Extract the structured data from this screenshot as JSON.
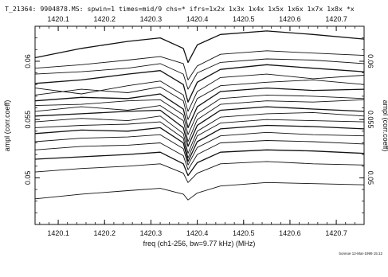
{
  "chart_data": {
    "type": "line",
    "header": "T_21364:  9904878.MS:   spwin=1   times=mid/9   chs=*   ifrs=1x2x 1x3x 1x4x 1x5x 1x6x 1x7x 1x8x *x",
    "xlabel": "freq (ch1-256, bw=9.77 kHz) (MHz)",
    "ylabel": "ampl (corr.coeff)",
    "xlim": [
      1420.05,
      1420.76
    ],
    "ylim": [
      0.046,
      0.063
    ],
    "x_ticks": [
      1420.1,
      1420.2,
      1420.3,
      1420.4,
      1420.5,
      1420.6,
      1420.7
    ],
    "x_tick_labels": [
      "1420.1",
      "1420.2",
      "1420.3",
      "1420.4",
      "1420.5",
      "1420.6",
      "1420.7"
    ],
    "top_tick_labels": [
      "1420.1",
      "1420.2",
      "1420.3",
      "1420.4",
      "1420.5",
      "1420.6",
      "1420.7"
    ],
    "y_ticks": [
      0.05,
      0.055,
      0.06
    ],
    "y_tick_labels": [
      "0.05",
      "0.055",
      "0.06"
    ],
    "grid": false,
    "absorption_center": 1420.38,
    "series": [
      {
        "points": [
          [
            1420.05,
            0.0603
          ],
          [
            1420.15,
            0.0611
          ],
          [
            1420.25,
            0.0617
          ],
          [
            1420.32,
            0.062
          ],
          [
            1420.37,
            0.0611
          ],
          [
            1420.38,
            0.0599
          ],
          [
            1420.4,
            0.0614
          ],
          [
            1420.45,
            0.0623
          ],
          [
            1420.55,
            0.0626
          ],
          [
            1420.65,
            0.0623
          ],
          [
            1420.76,
            0.0619
          ]
        ]
      },
      {
        "points": [
          [
            1420.05,
            0.0594
          ],
          [
            1420.15,
            0.0597
          ],
          [
            1420.25,
            0.0601
          ],
          [
            1420.32,
            0.0604
          ],
          [
            1420.37,
            0.0598
          ],
          [
            1420.38,
            0.0584
          ],
          [
            1420.4,
            0.0596
          ],
          [
            1420.45,
            0.0606
          ],
          [
            1420.55,
            0.0609
          ],
          [
            1420.65,
            0.0607
          ],
          [
            1420.76,
            0.0605
          ]
        ]
      },
      {
        "points": [
          [
            1420.05,
            0.0589
          ],
          [
            1420.15,
            0.0591
          ],
          [
            1420.25,
            0.0594
          ],
          [
            1420.32,
            0.0598
          ],
          [
            1420.37,
            0.0589
          ],
          [
            1420.38,
            0.0576
          ],
          [
            1420.4,
            0.059
          ],
          [
            1420.45,
            0.0599
          ],
          [
            1420.55,
            0.0602
          ],
          [
            1420.65,
            0.0601
          ],
          [
            1420.76,
            0.0598
          ]
        ]
      },
      {
        "points": [
          [
            1420.05,
            0.0581
          ],
          [
            1420.15,
            0.0584
          ],
          [
            1420.25,
            0.0589
          ],
          [
            1420.32,
            0.0592
          ],
          [
            1420.37,
            0.058
          ],
          [
            1420.38,
            0.0565
          ],
          [
            1420.4,
            0.0582
          ],
          [
            1420.45,
            0.0593
          ],
          [
            1420.55,
            0.0597
          ],
          [
            1420.65,
            0.0594
          ],
          [
            1420.76,
            0.0591
          ]
        ]
      },
      {
        "points": [
          [
            1420.05,
            0.0577
          ],
          [
            1420.15,
            0.0572
          ],
          [
            1420.25,
            0.0579
          ],
          [
            1420.32,
            0.0583
          ],
          [
            1420.37,
            0.0571
          ],
          [
            1420.38,
            0.0557
          ],
          [
            1420.4,
            0.0574
          ],
          [
            1420.45,
            0.0586
          ],
          [
            1420.55,
            0.0589
          ],
          [
            1420.65,
            0.0585
          ],
          [
            1420.76,
            0.0588
          ]
        ]
      },
      {
        "points": [
          [
            1420.05,
            0.0571
          ],
          [
            1420.15,
            0.0576
          ],
          [
            1420.25,
            0.0573
          ],
          [
            1420.32,
            0.0578
          ],
          [
            1420.37,
            0.0566
          ],
          [
            1420.38,
            0.055
          ],
          [
            1420.4,
            0.0568
          ],
          [
            1420.45,
            0.0579
          ],
          [
            1420.55,
            0.0582
          ],
          [
            1420.65,
            0.0584
          ],
          [
            1420.76,
            0.058
          ]
        ]
      },
      {
        "points": [
          [
            1420.05,
            0.0566
          ],
          [
            1420.15,
            0.0569
          ],
          [
            1420.25,
            0.0568
          ],
          [
            1420.32,
            0.0572
          ],
          [
            1420.37,
            0.0559
          ],
          [
            1420.38,
            0.0543
          ],
          [
            1420.4,
            0.0561
          ],
          [
            1420.45,
            0.0574
          ],
          [
            1420.55,
            0.0577
          ],
          [
            1420.65,
            0.0575
          ],
          [
            1420.76,
            0.0576
          ]
        ]
      },
      {
        "points": [
          [
            1420.05,
            0.0562
          ],
          [
            1420.15,
            0.0563
          ],
          [
            1420.25,
            0.0566
          ],
          [
            1420.32,
            0.0567
          ],
          [
            1420.37,
            0.0554
          ],
          [
            1420.38,
            0.0537
          ],
          [
            1420.4,
            0.0555
          ],
          [
            1420.45,
            0.0568
          ],
          [
            1420.55,
            0.0571
          ],
          [
            1420.65,
            0.057
          ],
          [
            1420.76,
            0.0568
          ]
        ]
      },
      {
        "points": [
          [
            1420.05,
            0.0557
          ],
          [
            1420.15,
            0.0561
          ],
          [
            1420.25,
            0.0558
          ],
          [
            1420.32,
            0.0562
          ],
          [
            1420.37,
            0.0549
          ],
          [
            1420.38,
            0.0531
          ],
          [
            1420.4,
            0.055
          ],
          [
            1420.45,
            0.0563
          ],
          [
            1420.55,
            0.0566
          ],
          [
            1420.65,
            0.0565
          ],
          [
            1420.76,
            0.0567
          ]
        ]
      },
      {
        "points": [
          [
            1420.05,
            0.0553
          ],
          [
            1420.15,
            0.0555
          ],
          [
            1420.25,
            0.0557
          ],
          [
            1420.32,
            0.0558
          ],
          [
            1420.37,
            0.0543
          ],
          [
            1420.38,
            0.0527
          ],
          [
            1420.4,
            0.0545
          ],
          [
            1420.45,
            0.0558
          ],
          [
            1420.55,
            0.0561
          ],
          [
            1420.65,
            0.0559
          ],
          [
            1420.76,
            0.0557
          ]
        ]
      },
      {
        "points": [
          [
            1420.05,
            0.0548
          ],
          [
            1420.15,
            0.0551
          ],
          [
            1420.25,
            0.0549
          ],
          [
            1420.32,
            0.0553
          ],
          [
            1420.37,
            0.0538
          ],
          [
            1420.38,
            0.0521
          ],
          [
            1420.4,
            0.054
          ],
          [
            1420.45,
            0.0552
          ],
          [
            1420.55,
            0.0555
          ],
          [
            1420.65,
            0.0556
          ],
          [
            1420.76,
            0.0553
          ]
        ]
      },
      {
        "points": [
          [
            1420.05,
            0.0543
          ],
          [
            1420.15,
            0.0545
          ],
          [
            1420.25,
            0.0546
          ],
          [
            1420.32,
            0.0548
          ],
          [
            1420.37,
            0.0534
          ],
          [
            1420.38,
            0.0517
          ],
          [
            1420.4,
            0.0536
          ],
          [
            1420.45,
            0.0547
          ],
          [
            1420.55,
            0.055
          ],
          [
            1420.65,
            0.0549
          ],
          [
            1420.76,
            0.0548
          ]
        ]
      },
      {
        "points": [
          [
            1420.05,
            0.0538
          ],
          [
            1420.15,
            0.0541
          ],
          [
            1420.25,
            0.054
          ],
          [
            1420.32,
            0.0543
          ],
          [
            1420.37,
            0.053
          ],
          [
            1420.38,
            0.0514
          ],
          [
            1420.4,
            0.0531
          ],
          [
            1420.45,
            0.0542
          ],
          [
            1420.55,
            0.0545
          ],
          [
            1420.65,
            0.0544
          ],
          [
            1420.76,
            0.0542
          ]
        ]
      },
      {
        "points": [
          [
            1420.05,
            0.0531
          ],
          [
            1420.15,
            0.0534
          ],
          [
            1420.25,
            0.0535
          ],
          [
            1420.32,
            0.0537
          ],
          [
            1420.37,
            0.0525
          ],
          [
            1420.38,
            0.0511
          ],
          [
            1420.4,
            0.0526
          ],
          [
            1420.45,
            0.0536
          ],
          [
            1420.55,
            0.0539
          ],
          [
            1420.65,
            0.0537
          ],
          [
            1420.76,
            0.0536
          ]
        ]
      },
      {
        "points": [
          [
            1420.05,
            0.0524
          ],
          [
            1420.15,
            0.0527
          ],
          [
            1420.25,
            0.0528
          ],
          [
            1420.32,
            0.053
          ],
          [
            1420.37,
            0.0519
          ],
          [
            1420.38,
            0.0507
          ],
          [
            1420.4,
            0.052
          ],
          [
            1420.45,
            0.053
          ],
          [
            1420.55,
            0.0532
          ],
          [
            1420.65,
            0.0531
          ],
          [
            1420.76,
            0.0529
          ]
        ]
      },
      {
        "points": [
          [
            1420.05,
            0.0516
          ],
          [
            1420.15,
            0.0518
          ],
          [
            1420.25,
            0.052
          ],
          [
            1420.32,
            0.0522
          ],
          [
            1420.37,
            0.0512
          ],
          [
            1420.38,
            0.0502
          ],
          [
            1420.4,
            0.0513
          ],
          [
            1420.45,
            0.0522
          ],
          [
            1420.55,
            0.0524
          ],
          [
            1420.65,
            0.0523
          ],
          [
            1420.76,
            0.0521
          ]
        ]
      },
      {
        "points": [
          [
            1420.05,
            0.0505
          ],
          [
            1420.15,
            0.0508
          ],
          [
            1420.25,
            0.051
          ],
          [
            1420.32,
            0.0512
          ],
          [
            1420.37,
            0.0504
          ],
          [
            1420.38,
            0.0496
          ],
          [
            1420.4,
            0.0504
          ],
          [
            1420.45,
            0.0512
          ],
          [
            1420.55,
            0.0514
          ],
          [
            1420.65,
            0.0512
          ],
          [
            1420.76,
            0.0511
          ]
        ]
      },
      {
        "points": [
          [
            1420.05,
            0.0482
          ],
          [
            1420.15,
            0.0486
          ],
          [
            1420.25,
            0.0489
          ],
          [
            1420.32,
            0.0491
          ],
          [
            1420.37,
            0.0486
          ],
          [
            1420.38,
            0.0481
          ],
          [
            1420.4,
            0.0487
          ],
          [
            1420.45,
            0.0493
          ],
          [
            1420.55,
            0.0496
          ],
          [
            1420.65,
            0.0495
          ],
          [
            1420.76,
            0.0494
          ]
        ]
      }
    ]
  },
  "footer_stamp": "bonnoe 12-Mar-1999 15:12"
}
